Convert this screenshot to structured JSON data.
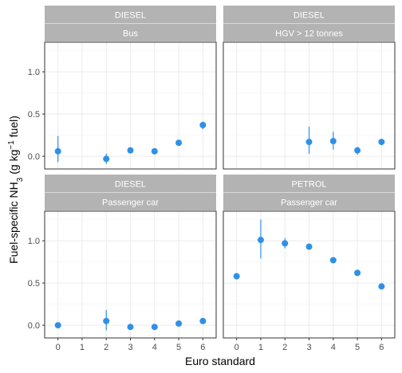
{
  "chart_data": {
    "type": "scatter",
    "xlabel": "Euro standard",
    "ylabel_parts": {
      "before": "Fuel-specific NH",
      "sub": "3",
      "middle": " (g kg",
      "sup": "−1",
      "after": " fuel)"
    },
    "x_ticks": [
      0,
      1,
      2,
      3,
      4,
      5,
      6
    ],
    "xlim": [
      -0.55,
      6.55
    ],
    "y_ticks": [
      0.0,
      0.5,
      1.0
    ],
    "y_tick_labels": [
      "0.0",
      "0.5",
      "1.0"
    ],
    "ylim": [
      -0.15,
      1.35
    ],
    "point_color": "#2e90e6",
    "grid": true,
    "panels": [
      {
        "fuel": "DIESEL",
        "vehicle": "Bus",
        "points": [
          {
            "x": 0,
            "y": 0.06,
            "lo": -0.07,
            "hi": 0.24
          },
          {
            "x": 2,
            "y": -0.03,
            "lo": -0.09,
            "hi": 0.03
          },
          {
            "x": 3,
            "y": 0.07,
            "lo": 0.05,
            "hi": 0.09
          },
          {
            "x": 4,
            "y": 0.06,
            "lo": 0.04,
            "hi": 0.08
          },
          {
            "x": 5,
            "y": 0.16,
            "lo": 0.14,
            "hi": 0.18
          },
          {
            "x": 6,
            "y": 0.37,
            "lo": 0.32,
            "hi": 0.41
          }
        ]
      },
      {
        "fuel": "DIESEL",
        "vehicle": "HGV > 12 tonnes",
        "points": [
          {
            "x": 3,
            "y": 0.17,
            "lo": 0.03,
            "hi": 0.35
          },
          {
            "x": 4,
            "y": 0.18,
            "lo": 0.08,
            "hi": 0.29
          },
          {
            "x": 5,
            "y": 0.07,
            "lo": 0.02,
            "hi": 0.11
          },
          {
            "x": 6,
            "y": 0.17,
            "lo": 0.15,
            "hi": 0.19
          }
        ]
      },
      {
        "fuel": "DIESEL",
        "vehicle": "Passenger car",
        "points": [
          {
            "x": 0,
            "y": 0.0,
            "lo": -0.02,
            "hi": 0.02
          },
          {
            "x": 2,
            "y": 0.05,
            "lo": -0.06,
            "hi": 0.18
          },
          {
            "x": 3,
            "y": -0.02,
            "lo": -0.04,
            "hi": 0.0
          },
          {
            "x": 4,
            "y": -0.02,
            "lo": -0.04,
            "hi": 0.0
          },
          {
            "x": 5,
            "y": 0.02,
            "lo": 0.0,
            "hi": 0.04
          },
          {
            "x": 6,
            "y": 0.05,
            "lo": 0.03,
            "hi": 0.07
          }
        ]
      },
      {
        "fuel": "PETROL",
        "vehicle": "Passenger car",
        "points": [
          {
            "x": 0,
            "y": 0.58,
            "lo": 0.56,
            "hi": 0.6
          },
          {
            "x": 1,
            "y": 1.01,
            "lo": 0.79,
            "hi": 1.25
          },
          {
            "x": 2,
            "y": 0.97,
            "lo": 0.91,
            "hi": 1.03
          },
          {
            "x": 3,
            "y": 0.93,
            "lo": 0.91,
            "hi": 0.95
          },
          {
            "x": 4,
            "y": 0.77,
            "lo": 0.75,
            "hi": 0.79
          },
          {
            "x": 5,
            "y": 0.62,
            "lo": 0.6,
            "hi": 0.64
          },
          {
            "x": 6,
            "y": 0.46,
            "lo": 0.44,
            "hi": 0.48
          }
        ]
      }
    ]
  }
}
